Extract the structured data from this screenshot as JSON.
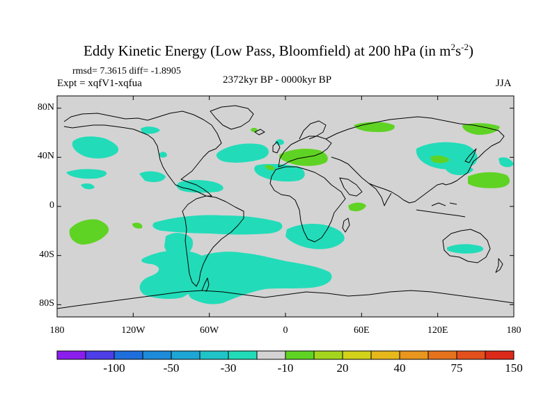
{
  "title": {
    "main": "Eddy Kinetic Energy (Low Pass, Bloomfield) at 200 hPa (in m",
    "sup1": "2",
    "mid": "s",
    "sup2": "-2",
    "close": ")"
  },
  "stats": "rmsd= 7.3615 diff= -1.8905",
  "experiment": "Expt = xqfV1-xqfua",
  "period": "2372kyr BP - 0000kyr BP",
  "season": "JJA",
  "colors": {
    "ocean_background": "#d3d3d3",
    "negative_anomaly": "#22dcb9",
    "positive_anomaly": "#5fd323",
    "coastline": "#000000"
  },
  "map": {
    "projection": "cylindrical-equidistant",
    "lon_range": [
      -180,
      180
    ],
    "lat_range": [
      -90,
      90
    ],
    "x_ticks": [
      {
        "lon": -180,
        "label": "180"
      },
      {
        "lon": -120,
        "label": "120W"
      },
      {
        "lon": -60,
        "label": "60W"
      },
      {
        "lon": 0,
        "label": "0"
      },
      {
        "lon": 60,
        "label": "60E"
      },
      {
        "lon": 120,
        "label": "120E"
      },
      {
        "lon": 180,
        "label": "180"
      }
    ],
    "y_ticks": [
      {
        "lat": 80,
        "label": "80N"
      },
      {
        "lat": 40,
        "label": "40N"
      },
      {
        "lat": 0,
        "label": "0"
      },
      {
        "lat": -40,
        "label": "40S"
      },
      {
        "lat": -80,
        "label": "80S"
      }
    ]
  },
  "colorbar": {
    "colors": [
      "#8c1eed",
      "#4d3ee8",
      "#1e6fdd",
      "#1d8bd9",
      "#1da6d5",
      "#20c4c8",
      "#22dcb9",
      "#d3d3d3",
      "#5fd323",
      "#a4d51e",
      "#d2d21a",
      "#e6b81c",
      "#e8961d",
      "#e6721c",
      "#e3501b",
      "#dc2a1a"
    ],
    "labels": [
      {
        "boundary": 2,
        "text": "-100"
      },
      {
        "boundary": 4,
        "text": "-50"
      },
      {
        "boundary": 6,
        "text": "-30"
      },
      {
        "boundary": 8,
        "text": "-10"
      },
      {
        "boundary": 10,
        "text": "20"
      },
      {
        "boundary": 12,
        "text": "40"
      },
      {
        "boundary": 14,
        "text": "75"
      },
      {
        "boundary": 16,
        "text": "150"
      }
    ]
  }
}
